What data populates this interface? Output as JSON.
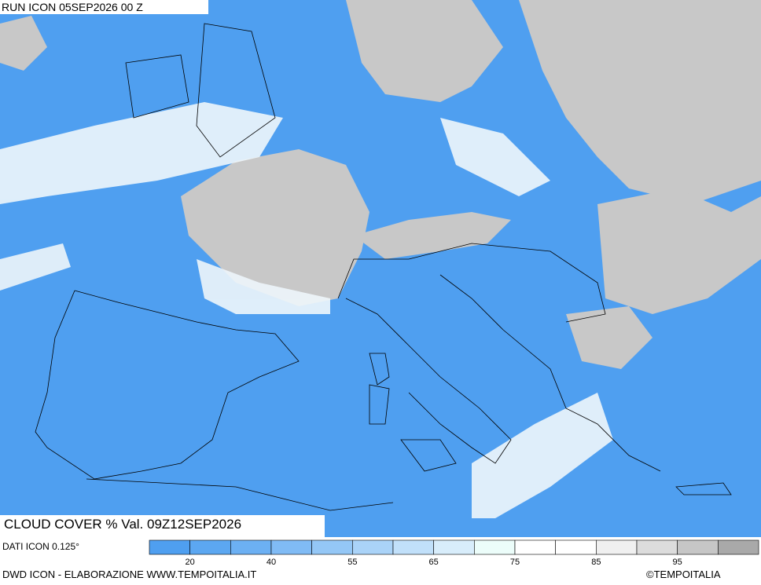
{
  "header": {
    "run": "RUN ICON 05SEP2026 00 Z"
  },
  "map": {
    "caption": "CLOUD COVER % Val. 09Z12SEP2026"
  },
  "legend": {
    "source": "DATI ICON 0.125°",
    "colors": [
      "#4f9ff0",
      "#5ca7f1",
      "#6cb0f3",
      "#80bbf5",
      "#94c7f6",
      "#aad3f8",
      "#c1e0fa",
      "#d8edfb",
      "#ecfdfa",
      "#ffffff",
      "#ffffff",
      "#f0f0f0",
      "#dcdcdc",
      "#c6c6c6",
      "#a9a9a9"
    ],
    "ticks": [
      20,
      40,
      55,
      65,
      75,
      85,
      95
    ]
  },
  "footer": {
    "credit": "DWD ICON - ELABORAZIONE WWW.TEMPOITALIA.IT",
    "copyright": "©TEMPOITALIA"
  }
}
